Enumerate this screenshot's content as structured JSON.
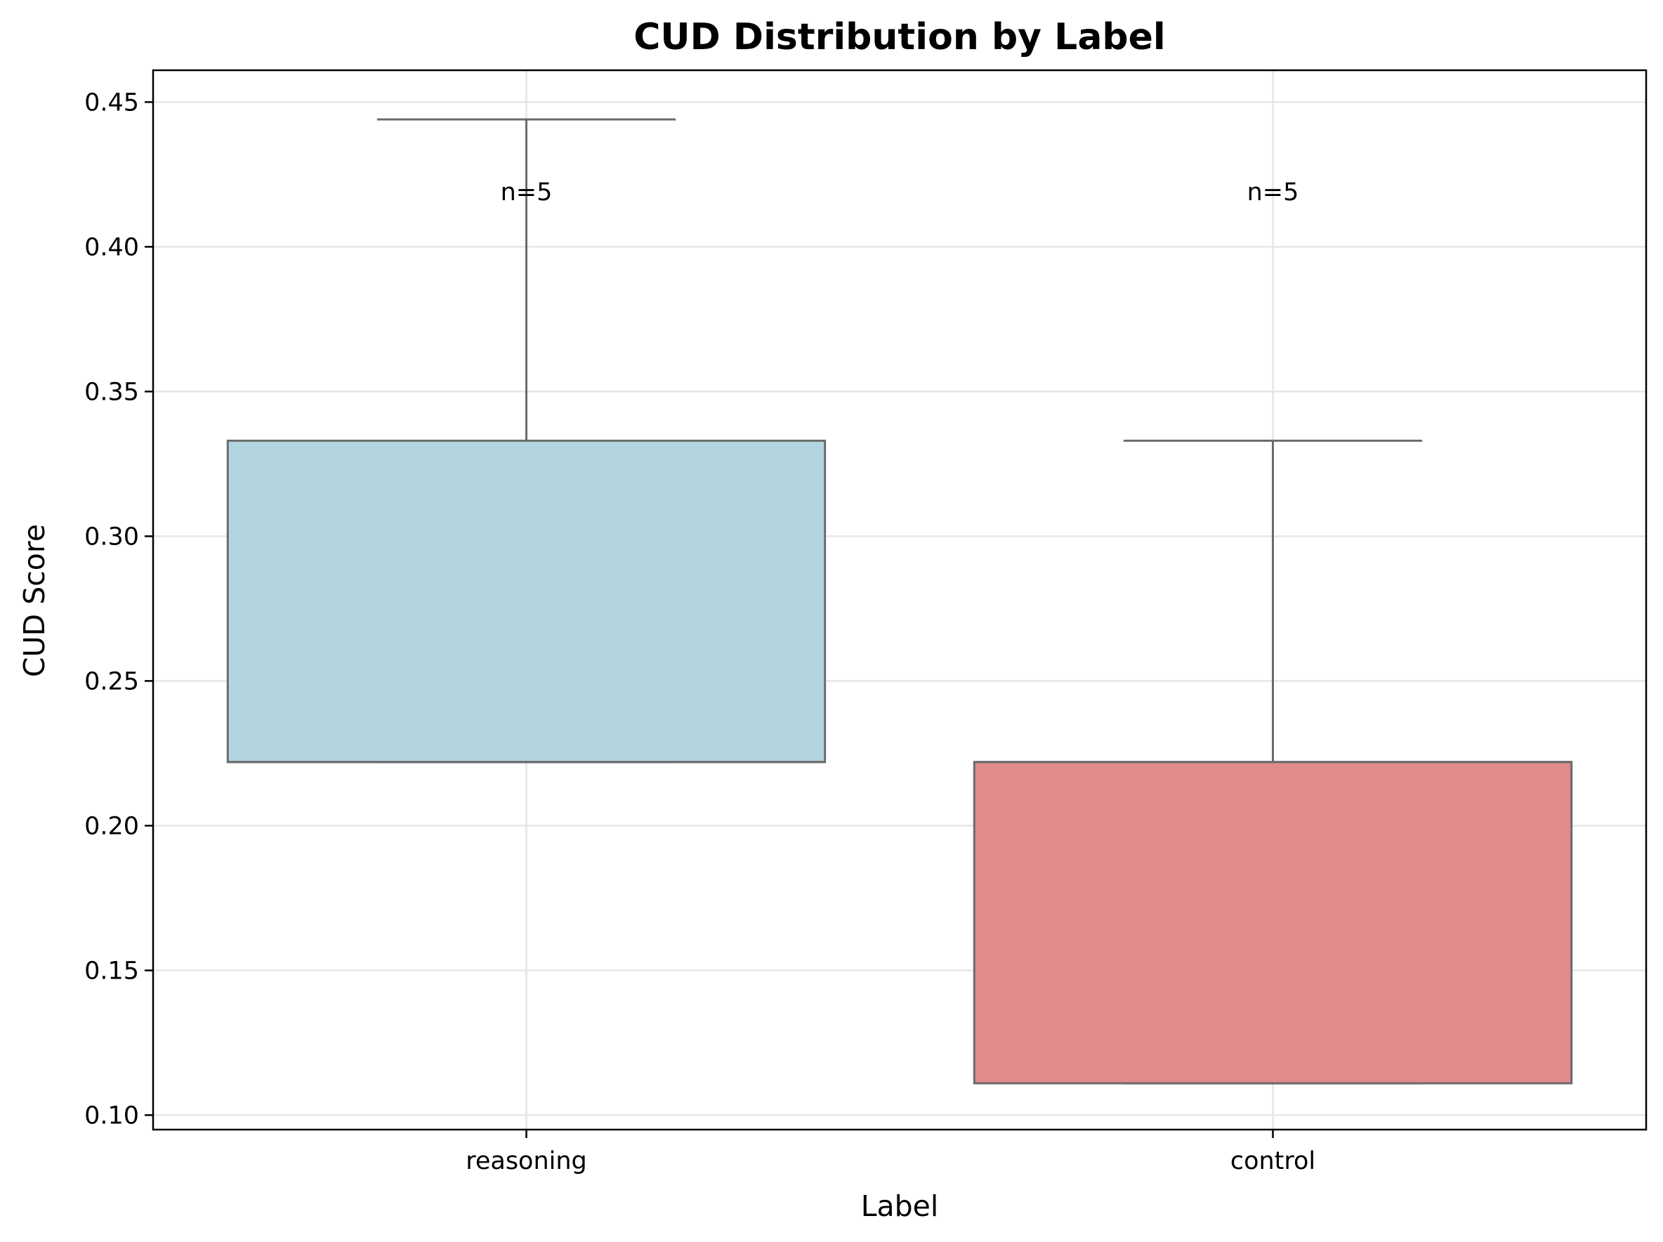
{
  "chart_data": {
    "type": "box",
    "title": "CUD Distribution by Label",
    "xlabel": "Label",
    "ylabel": "CUD Score",
    "ylim": [
      0.095,
      0.461
    ],
    "yticks": [
      0.1,
      0.15,
      0.2,
      0.25,
      0.3,
      0.35,
      0.4,
      0.45
    ],
    "ytick_labels": [
      "0.10",
      "0.15",
      "0.20",
      "0.25",
      "0.30",
      "0.35",
      "0.40",
      "0.45"
    ],
    "grid": true,
    "categories": [
      "reasoning",
      "control"
    ],
    "boxes": [
      {
        "label": "reasoning",
        "whisker_low": 0.222,
        "q1": 0.222,
        "median": 0.222,
        "q3": 0.333,
        "whisker_high": 0.444,
        "color": "#b3d5df",
        "annotation": "n=5"
      },
      {
        "label": "control",
        "whisker_low": 0.111,
        "q1": 0.111,
        "median": 0.222,
        "q3": 0.222,
        "whisker_high": 0.333,
        "color": "#e18b8d",
        "annotation": "n=5"
      }
    ],
    "annotation_y": 0.419,
    "line_color": "#6b6b6b",
    "grid_color": "#e6e6e6"
  }
}
